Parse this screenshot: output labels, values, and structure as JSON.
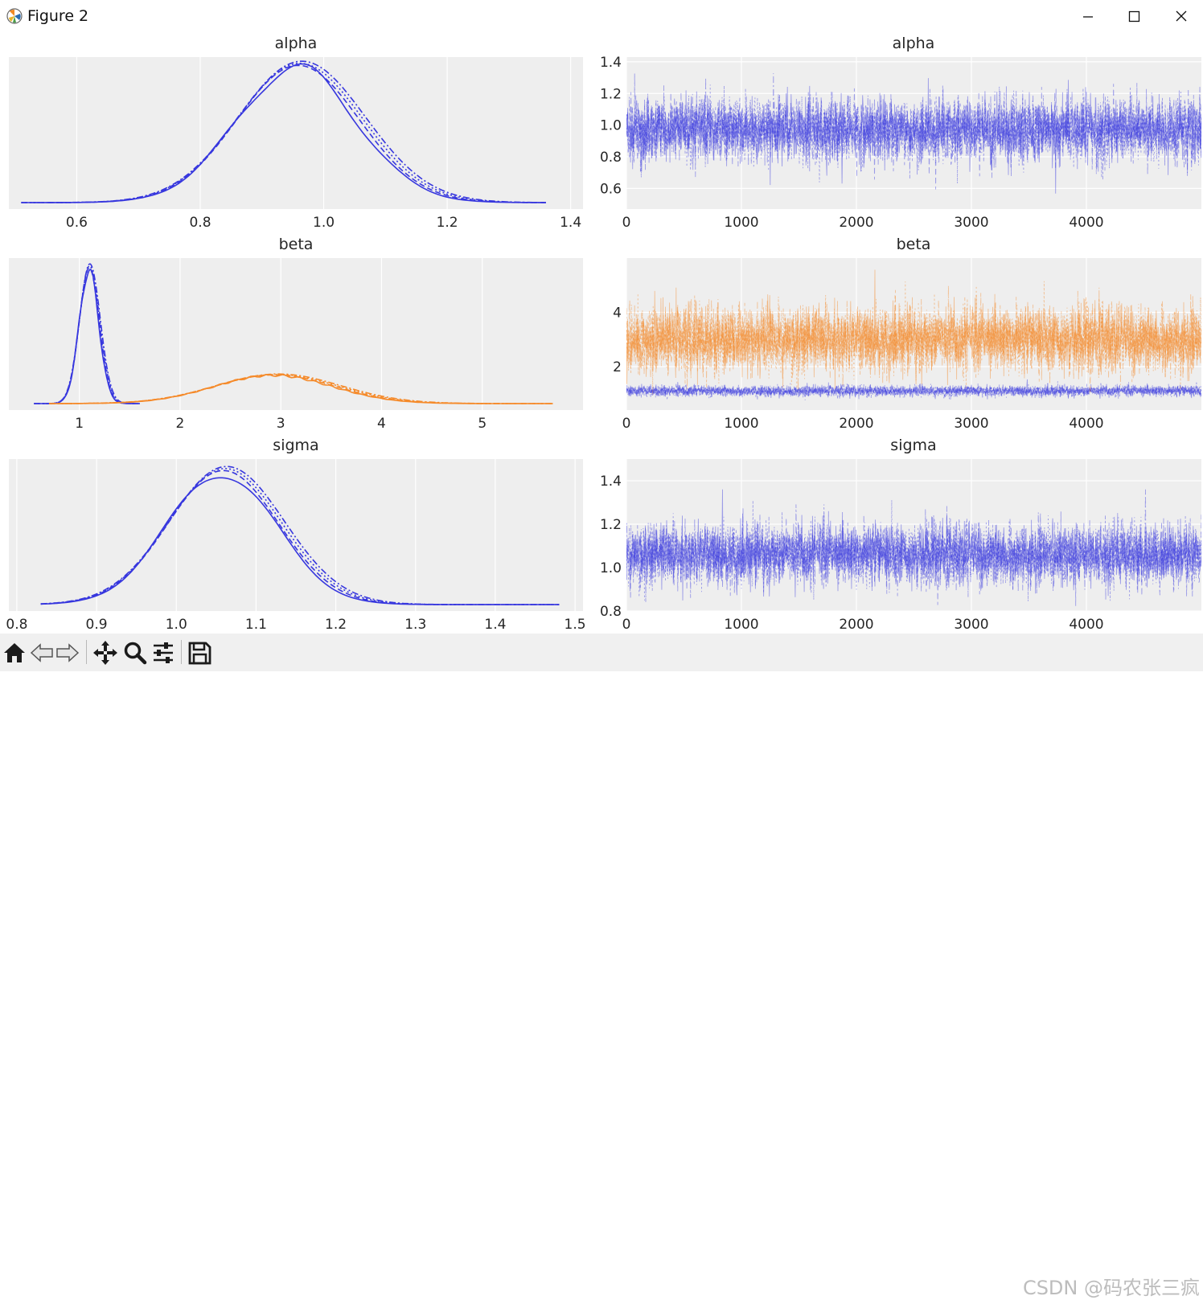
{
  "window": {
    "title": "Figure 2",
    "controls": [
      "minimize",
      "maximize",
      "close"
    ]
  },
  "toolbar": {
    "icons": [
      "home-icon",
      "back-icon",
      "forward-icon",
      "pan-icon",
      "zoom-icon",
      "configure-subplots-icon",
      "save-icon"
    ]
  },
  "watermark": "CSDN @码农张三疯",
  "colors": {
    "blue": "#3737de",
    "orange": "#f58a2a",
    "axes_bg": "#eeeeee",
    "grid": "#ffffff"
  },
  "chart_data": [
    {
      "type": "line",
      "title": "alpha",
      "xlim": [
        0.49,
        1.42
      ],
      "xticks": [
        "0.6",
        "0.8",
        "1.0",
        "1.2",
        "1.4"
      ],
      "yticks": [],
      "series": [
        {
          "color": "#3737de",
          "mean": 0.96,
          "sd": 0.1,
          "range": [
            0.51,
            1.36
          ],
          "peak_px": 172
        }
      ]
    },
    {
      "type": "line",
      "title": "alpha",
      "xlim": [
        0,
        5000
      ],
      "ylim": [
        0.47,
        1.43
      ],
      "xticks": [
        "0",
        "1000",
        "2000",
        "3000",
        "4000"
      ],
      "yticks": [
        "0.6",
        "0.8",
        "1.0",
        "1.2",
        "1.4"
      ],
      "series": [
        {
          "color": "#3737de",
          "mean": 0.97,
          "sd": 0.1
        }
      ]
    },
    {
      "type": "line",
      "title": "beta",
      "xlim": [
        0.3,
        6.0
      ],
      "xticks": [
        "1",
        "2",
        "3",
        "4",
        "5"
      ],
      "yticks": [],
      "series": [
        {
          "color": "#3737de",
          "mean": 1.1,
          "sd": 0.1,
          "range": [
            0.55,
            1.6
          ],
          "peak_px": 170
        },
        {
          "color": "#f58a2a",
          "mean": 2.95,
          "sd": 0.6,
          "range": [
            0.7,
            5.7
          ],
          "peak_px": 36
        }
      ]
    },
    {
      "type": "line",
      "title": "beta",
      "xlim": [
        0,
        5000
      ],
      "ylim": [
        0.4,
        6.0
      ],
      "xticks": [
        "0",
        "1000",
        "2000",
        "3000",
        "4000"
      ],
      "yticks": [
        "2",
        "4"
      ],
      "series": [
        {
          "color": "#3737de",
          "mean": 1.1,
          "sd": 0.1
        },
        {
          "color": "#f58a2a",
          "mean": 3.0,
          "sd": 0.6
        }
      ]
    },
    {
      "type": "line",
      "title": "sigma",
      "xlim": [
        0.79,
        1.51
      ],
      "xticks": [
        "0.8",
        "0.9",
        "1.0",
        "1.1",
        "1.2",
        "1.3",
        "1.4",
        "1.5"
      ],
      "yticks": [],
      "series": [
        {
          "color": "#3737de",
          "mean": 1.06,
          "sd": 0.07,
          "range": [
            0.83,
            1.48
          ],
          "peak_px": 168
        }
      ]
    },
    {
      "type": "line",
      "title": "sigma",
      "xlim": [
        0,
        5000
      ],
      "ylim": [
        0.8,
        1.5
      ],
      "xticks": [
        "0",
        "1000",
        "2000",
        "3000",
        "4000"
      ],
      "yticks": [
        "0.8",
        "1.0",
        "1.2",
        "1.4"
      ],
      "series": [
        {
          "color": "#3737de",
          "mean": 1.06,
          "sd": 0.07
        }
      ]
    }
  ]
}
